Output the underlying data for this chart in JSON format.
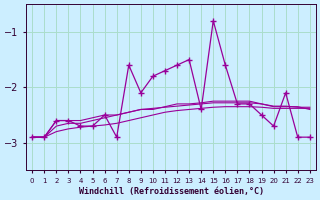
{
  "xlabel": "Windchill (Refroidissement éolien,°C)",
  "ylabel": "",
  "bg_color": "#cceeff",
  "grid_color": "#aaddcc",
  "line_color": "#990099",
  "hours": [
    0,
    1,
    2,
    3,
    4,
    5,
    6,
    7,
    8,
    9,
    10,
    11,
    12,
    13,
    14,
    15,
    16,
    17,
    18,
    19,
    20,
    21,
    22,
    23
  ],
  "windchill": [
    -2.9,
    -2.9,
    -2.6,
    -2.6,
    -2.7,
    -2.7,
    -2.5,
    -2.9,
    -1.6,
    -2.1,
    -1.8,
    -1.7,
    -1.6,
    -1.5,
    -2.4,
    -0.8,
    -1.6,
    -2.3,
    -2.3,
    -2.5,
    -2.7,
    -2.1,
    -2.9,
    -2.9
  ],
  "line2": [
    -2.9,
    -2.9,
    -2.6,
    -2.6,
    -2.6,
    -2.55,
    -2.5,
    -2.5,
    -2.45,
    -2.4,
    -2.4,
    -2.35,
    -2.3,
    -2.3,
    -2.28,
    -2.25,
    -2.25,
    -2.25,
    -2.25,
    -2.3,
    -2.35,
    -2.35,
    -2.35,
    -2.4
  ],
  "line3": [
    -2.9,
    -2.9,
    -2.7,
    -2.65,
    -2.65,
    -2.6,
    -2.55,
    -2.5,
    -2.45,
    -2.4,
    -2.38,
    -2.36,
    -2.34,
    -2.32,
    -2.3,
    -2.28,
    -2.28,
    -2.28,
    -2.28,
    -2.3,
    -2.34,
    -2.34,
    -2.36,
    -2.36
  ],
  "line4": [
    -2.9,
    -2.9,
    -2.8,
    -2.75,
    -2.72,
    -2.7,
    -2.68,
    -2.65,
    -2.6,
    -2.55,
    -2.5,
    -2.45,
    -2.42,
    -2.4,
    -2.38,
    -2.36,
    -2.35,
    -2.35,
    -2.35,
    -2.36,
    -2.38,
    -2.38,
    -2.38,
    -2.38
  ],
  "ylim": [
    -3.5,
    -0.5
  ],
  "yticks": [
    -3.0,
    -2.0,
    -1.0
  ],
  "xlim": [
    -0.5,
    23.5
  ],
  "xtick_labels": [
    "0",
    "1",
    "2",
    "3",
    "4",
    "5",
    "6",
    "7",
    "8",
    "9",
    "10",
    "11",
    "12",
    "13",
    "14",
    "15",
    "16",
    "17",
    "18",
    "19",
    "20",
    "21",
    "22",
    "23"
  ],
  "tick_color": "#330033"
}
